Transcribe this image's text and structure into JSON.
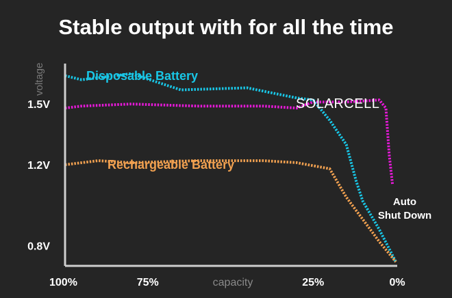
{
  "title": "Stable output with for all the time",
  "chart_data": {
    "type": "line",
    "title": "Stable output with for all the time",
    "xlabel": "capacity",
    "ylabel": "voltage",
    "x_ticks": [
      {
        "label": "100%",
        "x": 100
      },
      {
        "label": "75%",
        "x": 75
      },
      {
        "label": "25%",
        "x": 25
      },
      {
        "label": "0%",
        "x": 0
      }
    ],
    "y_ticks": [
      {
        "label": "1.5V",
        "y": 1.5
      },
      {
        "label": "1.2V",
        "y": 1.2
      },
      {
        "label": "0.8V",
        "y": 0.8
      }
    ],
    "xlim": [
      100,
      0
    ],
    "ylim": [
      0.7,
      1.7
    ],
    "grid": false,
    "series": [
      {
        "name": "Disposable Battery",
        "color": "#19c6e6",
        "x": [
          100,
          95,
          80,
          65,
          45,
          30,
          25,
          20,
          15,
          12,
          10,
          5,
          0
        ],
        "y": [
          1.64,
          1.62,
          1.65,
          1.57,
          1.58,
          1.53,
          1.52,
          1.42,
          1.3,
          1.12,
          1.02,
          0.88,
          0.72
        ]
      },
      {
        "name": "SOLARCELL",
        "color": "#e619d8",
        "x": [
          100,
          95,
          80,
          60,
          40,
          30,
          25,
          15,
          5,
          3,
          2,
          1
        ],
        "y": [
          1.48,
          1.49,
          1.5,
          1.49,
          1.49,
          1.48,
          1.51,
          1.51,
          1.52,
          1.48,
          1.25,
          1.1
        ]
      },
      {
        "name": "Rechargeable Battery",
        "color": "#f0a050",
        "x": [
          100,
          90,
          80,
          60,
          40,
          30,
          20,
          15,
          10,
          5,
          0
        ],
        "y": [
          1.2,
          1.22,
          1.21,
          1.22,
          1.22,
          1.21,
          1.18,
          1.04,
          0.93,
          0.82,
          0.72
        ]
      }
    ],
    "annotations": [
      "Auto",
      "Shut Down"
    ]
  }
}
